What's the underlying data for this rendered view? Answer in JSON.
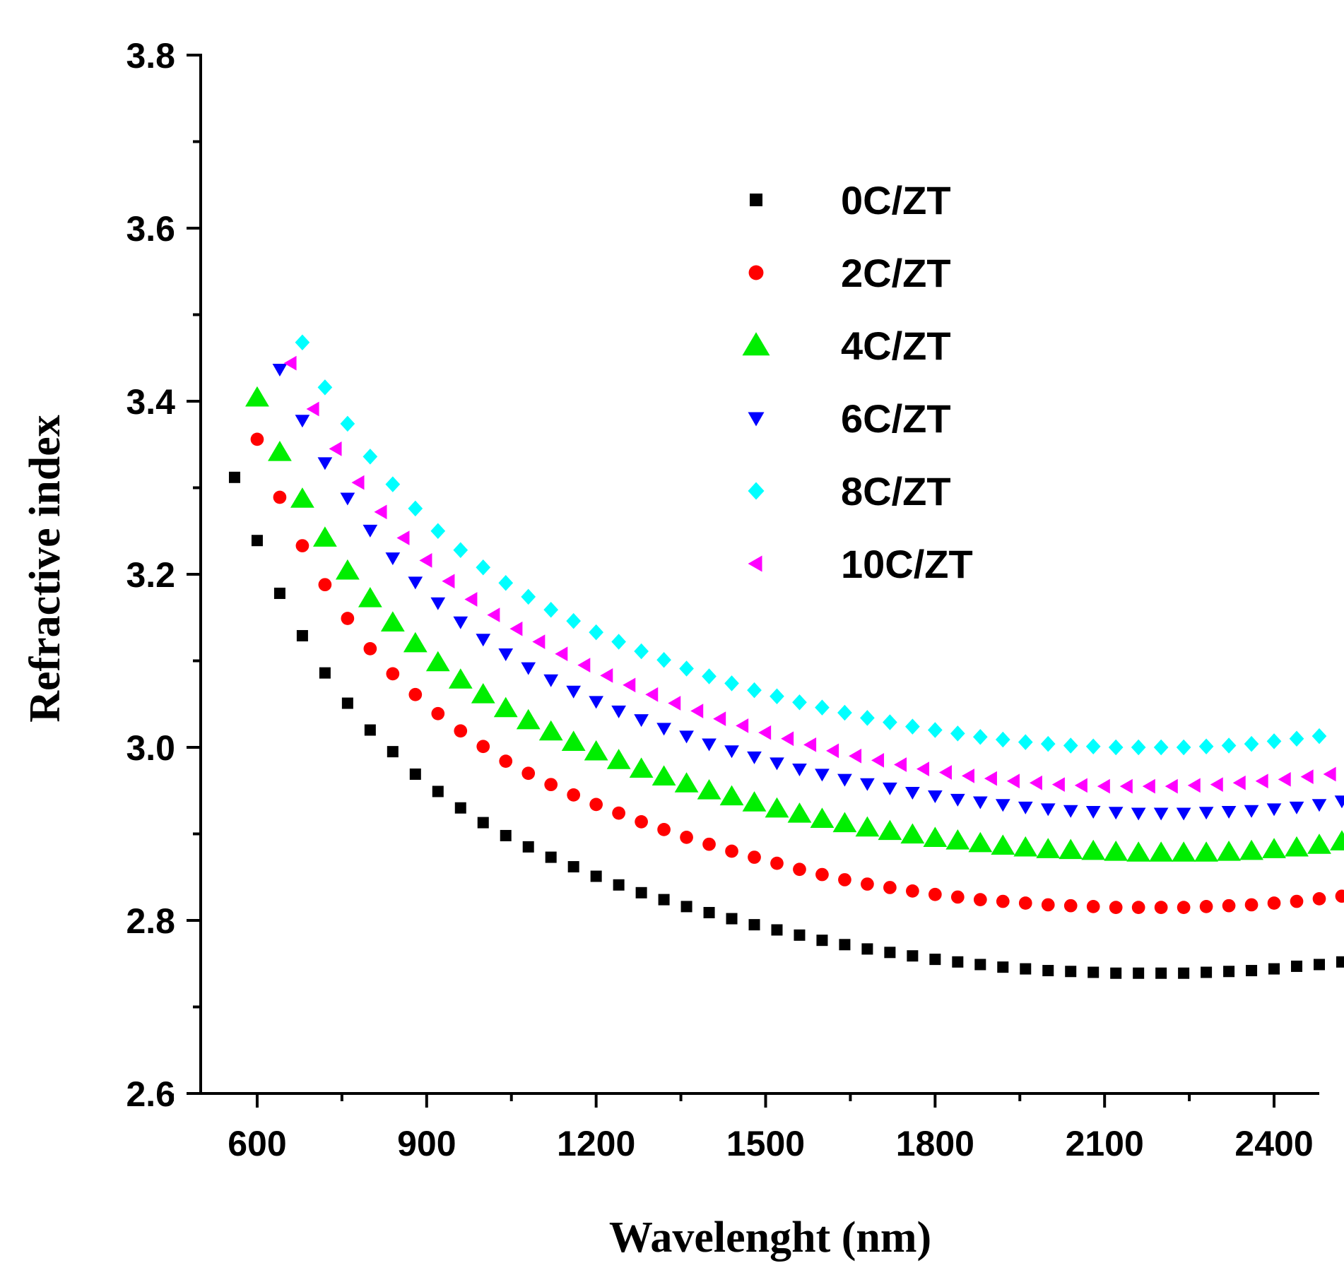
{
  "chart_data": {
    "type": "scatter",
    "title": "",
    "xlabel": "Wavelenght (nm)",
    "ylabel": "Refractive index",
    "xlim": [
      500,
      2480
    ],
    "ylim": [
      2.6,
      3.8
    ],
    "xticks": [
      600,
      900,
      1200,
      1500,
      1800,
      2100,
      2400
    ],
    "xtick_labels": [
      "600",
      "900",
      "1200",
      "1500",
      "1800",
      "2100",
      "2400"
    ],
    "yticks": [
      2.6,
      2.8,
      3.0,
      3.2,
      3.4,
      3.6,
      3.8
    ],
    "ytick_labels": [
      "2.6",
      "2.8",
      "3.0",
      "3.2",
      "3.4",
      "3.6",
      "3.8"
    ],
    "legend_position": "top-right",
    "series": [
      {
        "name": "0C/ZT",
        "marker": "square",
        "color": "#000000",
        "x_start": 560,
        "x_step": 40,
        "values": [
          3.312,
          3.239,
          3.178,
          3.129,
          3.086,
          3.051,
          3.02,
          2.995,
          2.969,
          2.949,
          2.93,
          2.913,
          2.898,
          2.885,
          2.873,
          2.862,
          2.851,
          2.841,
          2.832,
          2.824,
          2.816,
          2.809,
          2.802,
          2.795,
          2.789,
          2.783,
          2.777,
          2.772,
          2.767,
          2.763,
          2.759,
          2.755,
          2.752,
          2.749,
          2.746,
          2.744,
          2.742,
          2.741,
          2.74,
          2.739,
          2.739,
          2.739,
          2.739,
          2.74,
          2.741,
          2.742,
          2.744,
          2.747,
          2.749,
          2.752
        ]
      },
      {
        "name": "2C/ZT",
        "marker": "circle",
        "color": "#ff0000",
        "x_start": 600,
        "x_step": 40,
        "values": [
          3.356,
          3.289,
          3.233,
          3.188,
          3.149,
          3.114,
          3.085,
          3.061,
          3.039,
          3.019,
          3.001,
          2.984,
          2.97,
          2.957,
          2.945,
          2.934,
          2.924,
          2.914,
          2.905,
          2.896,
          2.888,
          2.88,
          2.873,
          2.866,
          2.859,
          2.853,
          2.847,
          2.842,
          2.838,
          2.834,
          2.83,
          2.827,
          2.824,
          2.822,
          2.82,
          2.818,
          2.817,
          2.816,
          2.815,
          2.815,
          2.815,
          2.815,
          2.816,
          2.817,
          2.818,
          2.82,
          2.822,
          2.825,
          2.828
        ]
      },
      {
        "name": "4C/ZT",
        "marker": "triangle-up",
        "color": "#00ee00",
        "x_start": 600,
        "x_step": 40,
        "values": [
          3.404,
          3.341,
          3.287,
          3.242,
          3.204,
          3.172,
          3.144,
          3.12,
          3.098,
          3.078,
          3.061,
          3.045,
          3.031,
          3.018,
          3.006,
          2.995,
          2.985,
          2.975,
          2.966,
          2.958,
          2.95,
          2.943,
          2.936,
          2.929,
          2.923,
          2.917,
          2.912,
          2.907,
          2.903,
          2.899,
          2.895,
          2.892,
          2.889,
          2.886,
          2.884,
          2.882,
          2.881,
          2.88,
          2.879,
          2.878,
          2.878,
          2.878,
          2.878,
          2.879,
          2.88,
          2.882,
          2.884,
          2.887,
          2.891
        ]
      },
      {
        "name": "6C/ZT",
        "marker": "triangle-down",
        "color": "#0000ff",
        "x_start": 640,
        "x_step": 40,
        "values": [
          3.437,
          3.378,
          3.329,
          3.288,
          3.251,
          3.219,
          3.191,
          3.167,
          3.145,
          3.125,
          3.108,
          3.092,
          3.078,
          3.065,
          3.053,
          3.042,
          3.032,
          3.022,
          3.013,
          3.004,
          2.996,
          2.989,
          2.982,
          2.975,
          2.969,
          2.963,
          2.958,
          2.953,
          2.948,
          2.944,
          2.94,
          2.937,
          2.934,
          2.931,
          2.929,
          2.927,
          2.926,
          2.925,
          2.924,
          2.924,
          2.924,
          2.925,
          2.926,
          2.927,
          2.929,
          2.931,
          2.934,
          2.938
        ]
      },
      {
        "name": "8C/ZT",
        "marker": "diamond",
        "color": "#00ffff",
        "x_start": 680,
        "x_step": 40,
        "values": [
          3.468,
          3.416,
          3.374,
          3.336,
          3.304,
          3.276,
          3.25,
          3.228,
          3.208,
          3.19,
          3.174,
          3.159,
          3.146,
          3.133,
          3.122,
          3.111,
          3.101,
          3.091,
          3.082,
          3.074,
          3.066,
          3.059,
          3.052,
          3.046,
          3.04,
          3.034,
          3.029,
          3.024,
          3.02,
          3.016,
          3.012,
          3.009,
          3.006,
          3.004,
          3.002,
          3.001,
          3.0,
          3.0,
          3.0,
          3.0,
          3.001,
          3.002,
          3.004,
          3.007,
          3.01,
          3.013
        ]
      },
      {
        "name": "10C/ZT",
        "marker": "triangle-left",
        "color": "#ff00ff",
        "x_start": 660,
        "x_step": 40,
        "values": [
          3.444,
          3.391,
          3.345,
          3.306,
          3.272,
          3.242,
          3.216,
          3.192,
          3.171,
          3.153,
          3.137,
          3.122,
          3.108,
          3.095,
          3.083,
          3.072,
          3.061,
          3.051,
          3.042,
          3.033,
          3.025,
          3.017,
          3.01,
          3.003,
          2.996,
          2.99,
          2.985,
          2.98,
          2.975,
          2.971,
          2.967,
          2.964,
          2.961,
          2.959,
          2.957,
          2.956,
          2.955,
          2.955,
          2.955,
          2.955,
          2.956,
          2.957,
          2.959,
          2.961,
          2.963,
          2.966,
          2.969
        ]
      }
    ]
  }
}
